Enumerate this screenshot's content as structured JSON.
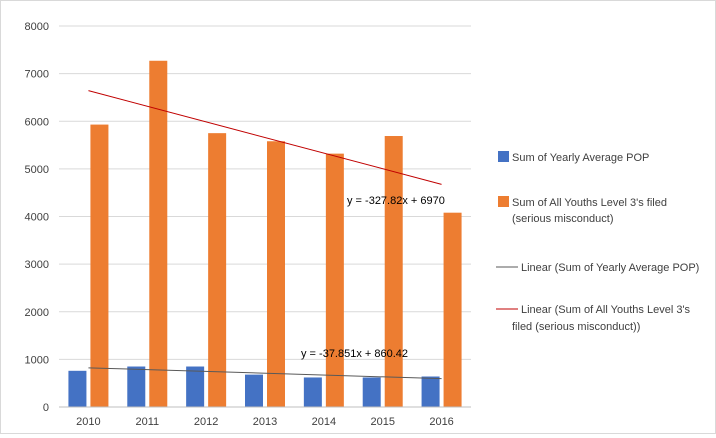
{
  "chart_data": {
    "type": "bar",
    "categories": [
      "2010",
      "2011",
      "2012",
      "2013",
      "2014",
      "2015",
      "2016"
    ],
    "ylim": [
      0,
      8000
    ],
    "y_ticks": [
      0,
      1000,
      2000,
      3000,
      4000,
      5000,
      6000,
      7000,
      8000
    ],
    "grid": true,
    "legend_position": "right",
    "series": [
      {
        "name": "Sum of Yearly Average POP",
        "values": [
          760,
          850,
          850,
          680,
          620,
          620,
          640
        ],
        "color": "#4472c4"
      },
      {
        "name_lines": [
          "Sum of All Youths Level 3's filed",
          "(serious misconduct)"
        ],
        "values": [
          5930,
          7270,
          5750,
          5580,
          5320,
          5690,
          4080
        ],
        "color": "#ed7d31"
      }
    ],
    "trendlines": [
      {
        "name_lines": [
          "Linear (Sum of Yearly Average POP)"
        ],
        "slope": -37.851,
        "intercept": 860.42,
        "equation": "y = -37.851x + 860.42",
        "color": "#595959"
      },
      {
        "name_lines": [
          "Linear (Sum of All Youths Level 3's",
          "filed (serious misconduct))"
        ],
        "slope": -327.82,
        "intercept": 6970,
        "equation": "y = -327.82x + 6970",
        "color": "#c00000"
      }
    ]
  }
}
